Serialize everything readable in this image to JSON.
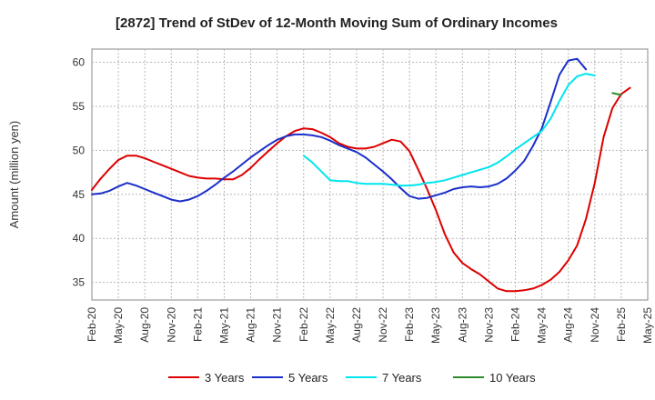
{
  "chart_data": {
    "type": "line",
    "title": "[2872]  Trend of StDev of 12-Month Moving Sum of Ordinary Incomes",
    "xlabel": "",
    "ylabel": "Amount (million yen)",
    "ylim": [
      33,
      61.5
    ],
    "yticks": [
      35,
      40,
      45,
      50,
      55,
      60
    ],
    "grid": true,
    "legend_position": "bottom",
    "x_ticks": [
      "Feb-20",
      "May-20",
      "Aug-20",
      "Nov-20",
      "Feb-21",
      "May-21",
      "Aug-21",
      "Nov-21",
      "Feb-22",
      "May-22",
      "Aug-22",
      "Nov-22",
      "Feb-23",
      "May-23",
      "Aug-23",
      "Nov-23",
      "Feb-24",
      "May-24",
      "Aug-24",
      "Nov-24",
      "Feb-25",
      "May-25"
    ],
    "x_start": "Feb-20",
    "x_step": "1 month",
    "series": [
      {
        "name": "3 Years",
        "color": "#dd0000",
        "start_index": 0,
        "values": [
          45.5,
          46.8,
          47.9,
          48.9,
          49.4,
          49.4,
          49.1,
          48.7,
          48.3,
          47.9,
          47.5,
          47.1,
          46.9,
          46.8,
          46.8,
          46.7,
          46.7,
          47.2,
          48.0,
          49.0,
          49.9,
          50.8,
          51.6,
          52.2,
          52.5,
          52.4,
          52.0,
          51.5,
          50.8,
          50.4,
          50.2,
          50.2,
          50.4,
          50.8,
          51.2,
          51.0,
          49.9,
          47.8,
          45.6,
          43.2,
          40.5,
          38.4,
          37.2,
          36.5,
          35.9,
          35.1,
          34.3,
          34.0,
          34.0,
          34.1,
          34.3,
          34.7,
          35.3,
          36.2,
          37.5,
          39.2,
          42.2,
          46.3,
          51.5,
          54.8,
          56.4,
          57.1
        ]
      },
      {
        "name": "5 Years",
        "color": "#1a2fc8",
        "start_index": 0,
        "values": [
          45.0,
          45.1,
          45.4,
          45.9,
          46.3,
          46.0,
          45.6,
          45.2,
          44.8,
          44.4,
          44.2,
          44.4,
          44.8,
          45.4,
          46.1,
          46.9,
          47.6,
          48.4,
          49.2,
          49.9,
          50.6,
          51.2,
          51.6,
          51.8,
          51.8,
          51.7,
          51.5,
          51.1,
          50.6,
          50.2,
          49.8,
          49.2,
          48.4,
          47.6,
          46.7,
          45.7,
          44.8,
          44.5,
          44.6,
          44.9,
          45.2,
          45.6,
          45.8,
          45.9,
          45.8,
          45.9,
          46.2,
          46.8,
          47.7,
          48.8,
          50.5,
          52.5,
          55.5,
          58.6,
          60.2,
          60.4,
          59.2
        ]
      },
      {
        "name": "7 Years",
        "color": "#00e5ee",
        "start_index": 24,
        "values": [
          49.4,
          48.6,
          47.6,
          46.6,
          46.5,
          46.5,
          46.3,
          46.2,
          46.2,
          46.2,
          46.1,
          46.0,
          46.0,
          46.1,
          46.3,
          46.4,
          46.6,
          46.9,
          47.2,
          47.5,
          47.8,
          48.1,
          48.6,
          49.3,
          50.1,
          50.8,
          51.5,
          52.2,
          53.6,
          55.6,
          57.4,
          58.4,
          58.7,
          58.5
        ]
      },
      {
        "name": "10 Years",
        "color": "#2e8b2e",
        "start_index": 59,
        "values": [
          56.5,
          56.3
        ]
      }
    ]
  }
}
